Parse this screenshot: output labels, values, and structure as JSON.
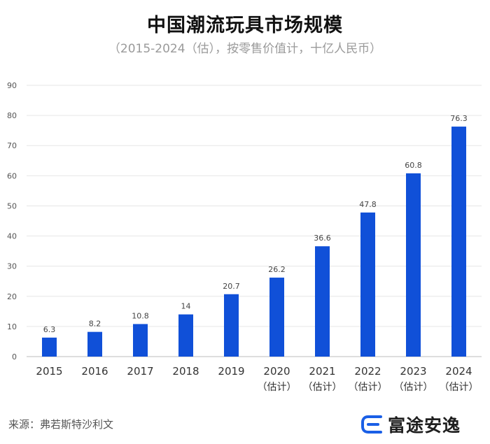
{
  "chart_data": {
    "type": "bar",
    "title": "中国潮流玩具市场规模",
    "subtitle": "（2015-2024（估），按零售价值计，十亿人民币）",
    "categories": [
      "2015",
      "2016",
      "2017",
      "2018",
      "2019",
      "2020",
      "2021",
      "2022",
      "2023",
      "2024"
    ],
    "category_notes": [
      "",
      "",
      "",
      "",
      "",
      "（估计）",
      "（估计）",
      "（估计）",
      "（估计）",
      "（估计）"
    ],
    "series": [
      {
        "name": "中国潮流玩具市场规模",
        "values": [
          6.3,
          8.2,
          10.8,
          14,
          20.7,
          26.2,
          36.6,
          47.8,
          60.8,
          76.3
        ],
        "labels": [
          "6.3",
          "8.2",
          "10.8",
          "14",
          "20.7",
          "26.2",
          "36.6",
          "47.8",
          "60.8",
          "76.3"
        ]
      }
    ],
    "ylim": [
      0,
      90
    ],
    "yticks": [
      0,
      10,
      20,
      30,
      40,
      50,
      60,
      70,
      80,
      90
    ],
    "grid": true,
    "bar_color": "#1050d8",
    "xlabel": "",
    "ylabel": ""
  },
  "source": "来源：弗若斯特沙利文",
  "brand": {
    "name": "富途安逸",
    "logo_icon": "futu-logo-icon",
    "logo_color": "#1a5fe6"
  }
}
